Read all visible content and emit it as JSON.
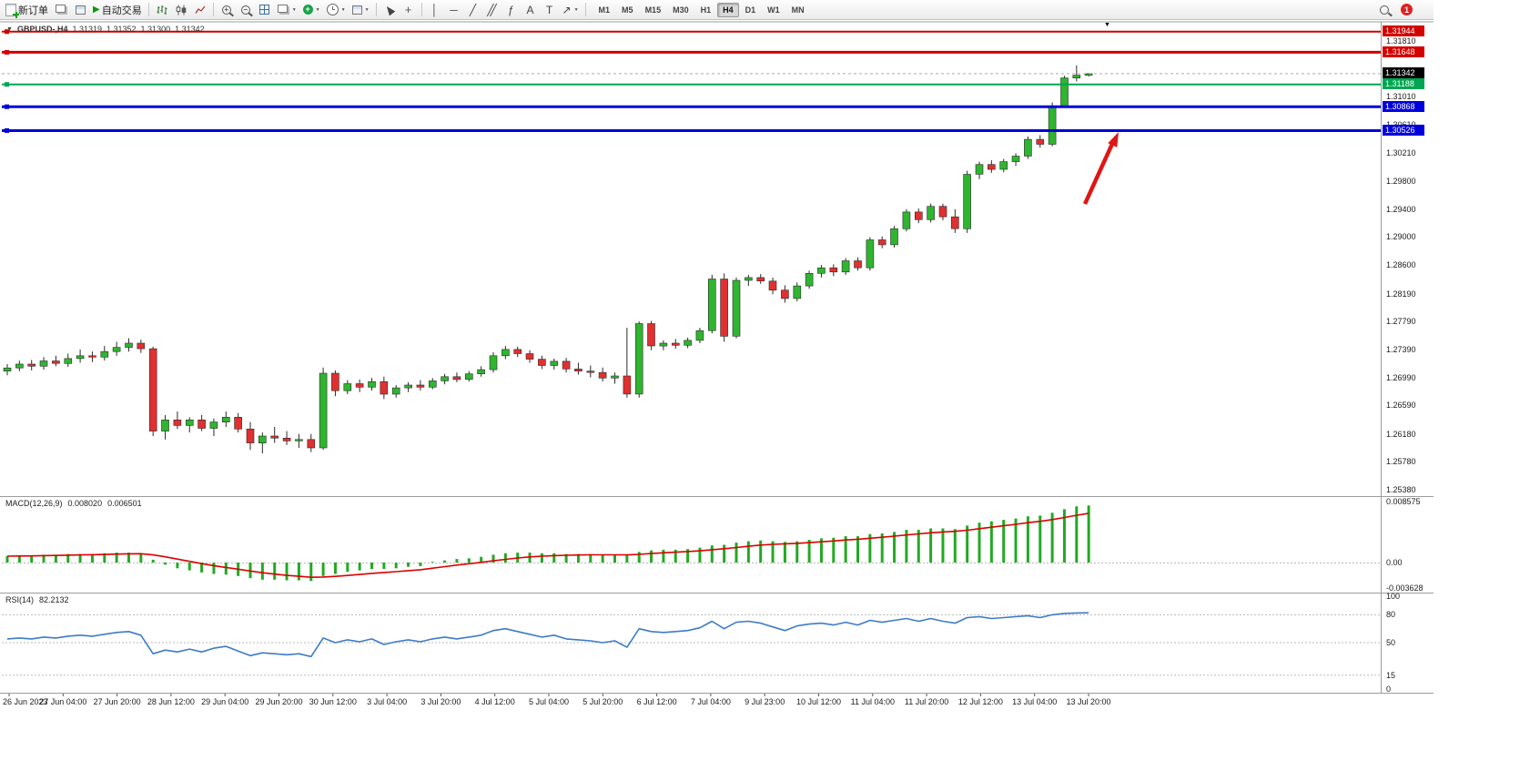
{
  "toolbar": {
    "new_order_label": "新订单",
    "auto_trading_label": "自动交易",
    "timeframes": [
      "M1",
      "M5",
      "M15",
      "M30",
      "H1",
      "H4",
      "D1",
      "W1",
      "MN"
    ],
    "active_timeframe": "H4",
    "notification_badge": "1",
    "glyphs": {
      "play": "▶",
      "vertical_line": "│",
      "horizontal_line": "─",
      "trendline": "╱",
      "channel": "╱╱",
      "fibonacci": "ƒ",
      "text_tool": "A",
      "label_tool": "T",
      "crosshair": "+",
      "arrow_tool": "↗",
      "zoom_in": "+",
      "zoom_out": "−",
      "one_click_toggle": "▼",
      "shift_marker": "▼"
    }
  },
  "chart_data": {
    "type": "candlestick",
    "symbol": "GBPUSD-",
    "timeframe": "H4",
    "header": {
      "symbol_period": "GBPUSD-,H4",
      "open": "1.31319",
      "high": "1.31352",
      "low": "1.31300",
      "close": "1.31342"
    },
    "colors": {
      "up": "#2FB52F",
      "down": "#E03030",
      "wick": "#2b2b2b",
      "macd_histogram": "#22AA22",
      "macd_signal": "#DD0000",
      "rsi_line": "#3E7BC8",
      "arrow": "#E01515"
    },
    "price_axis_labels": [
      "1.31810",
      "1.31010",
      "1.30610",
      "1.30210",
      "1.29800",
      "1.29400",
      "1.29000",
      "1.28600",
      "1.28190",
      "1.27790",
      "1.27390",
      "1.26990",
      "1.26590",
      "1.26180",
      "1.25780",
      "1.25380"
    ],
    "levels": [
      {
        "label": "1.31944",
        "color": "#D40000",
        "width": 2,
        "style": "solid"
      },
      {
        "label": "1.31648",
        "color": "#D40000",
        "width": 3,
        "style": "solid"
      },
      {
        "label": "1.31342",
        "color": "#000000",
        "width": 1,
        "style": "current"
      },
      {
        "label": "1.31188",
        "color": "#00A651",
        "width": 2,
        "style": "solid"
      },
      {
        "label": "1.30868",
        "color": "#0000DD",
        "width": 3,
        "style": "solid"
      },
      {
        "label": "1.30526",
        "color": "#0000DD",
        "width": 3,
        "style": "solid"
      }
    ],
    "candles": [
      [
        1.2708,
        1.2718,
        1.2702,
        1.27125
      ],
      [
        1.27125,
        1.2723,
        1.2708,
        1.2718
      ],
      [
        1.2718,
        1.2724,
        1.2709,
        1.2715
      ],
      [
        1.2715,
        1.2728,
        1.271,
        1.27225
      ],
      [
        1.27225,
        1.273,
        1.2715,
        1.2719
      ],
      [
        1.2719,
        1.2733,
        1.2714,
        1.2726
      ],
      [
        1.2726,
        1.2739,
        1.272,
        1.273
      ],
      [
        1.273,
        1.2736,
        1.2721,
        1.2728
      ],
      [
        1.2728,
        1.2744,
        1.2723,
        1.2736
      ],
      [
        1.2736,
        1.275,
        1.273,
        1.2742
      ],
      [
        1.2742,
        1.2755,
        1.2736,
        1.2748
      ],
      [
        1.2748,
        1.2753,
        1.2734,
        1.274
      ],
      [
        1.274,
        1.2743,
        1.2615,
        1.2622
      ],
      [
        1.2622,
        1.2645,
        1.261,
        1.2638
      ],
      [
        1.2638,
        1.265,
        1.2625,
        1.263
      ],
      [
        1.263,
        1.2642,
        1.262,
        1.2638
      ],
      [
        1.2638,
        1.2645,
        1.2622,
        1.2626
      ],
      [
        1.2626,
        1.264,
        1.2615,
        1.2635
      ],
      [
        1.2635,
        1.265,
        1.2628,
        1.2642
      ],
      [
        1.2642,
        1.2648,
        1.262,
        1.2625
      ],
      [
        1.2625,
        1.2635,
        1.2595,
        1.2605
      ],
      [
        1.2605,
        1.262,
        1.259,
        1.2615
      ],
      [
        1.2615,
        1.2628,
        1.2605,
        1.2612
      ],
      [
        1.2612,
        1.2622,
        1.2602,
        1.2608
      ],
      [
        1.2608,
        1.2618,
        1.2598,
        1.261
      ],
      [
        1.261,
        1.2618,
        1.2592,
        1.2598
      ],
      [
        1.2598,
        1.2713,
        1.2595,
        1.2705
      ],
      [
        1.2705,
        1.2709,
        1.2672,
        1.268
      ],
      [
        1.268,
        1.2695,
        1.2675,
        1.269
      ],
      [
        1.269,
        1.2696,
        1.2678,
        1.2685
      ],
      [
        1.2685,
        1.2698,
        1.268,
        1.2693
      ],
      [
        1.2693,
        1.27,
        1.2668,
        1.2675
      ],
      [
        1.2675,
        1.2688,
        1.267,
        1.2684
      ],
      [
        1.2684,
        1.2692,
        1.2678,
        1.2688
      ],
      [
        1.2688,
        1.2695,
        1.268,
        1.2685
      ],
      [
        1.2685,
        1.2698,
        1.2682,
        1.2694
      ],
      [
        1.2694,
        1.2704,
        1.2689,
        1.27
      ],
      [
        1.27,
        1.2706,
        1.2692,
        1.2696
      ],
      [
        1.2696,
        1.2708,
        1.2693,
        1.2704
      ],
      [
        1.2704,
        1.2715,
        1.27,
        1.271
      ],
      [
        1.271,
        1.2735,
        1.2706,
        1.273
      ],
      [
        1.273,
        1.2744,
        1.2725,
        1.2739
      ],
      [
        1.2739,
        1.2743,
        1.2728,
        1.2733
      ],
      [
        1.2733,
        1.2738,
        1.272,
        1.2725
      ],
      [
        1.2725,
        1.273,
        1.2711,
        1.2716
      ],
      [
        1.2716,
        1.2726,
        1.271,
        1.2722
      ],
      [
        1.2722,
        1.2727,
        1.2706,
        1.2711
      ],
      [
        1.2711,
        1.272,
        1.2703,
        1.2708
      ],
      [
        1.2708,
        1.2716,
        1.2699,
        1.2706
      ],
      [
        1.2706,
        1.2713,
        1.2693,
        1.2698
      ],
      [
        1.2698,
        1.2706,
        1.269,
        1.2701
      ],
      [
        1.2701,
        1.277,
        1.267,
        1.2675
      ],
      [
        1.2675,
        1.2779,
        1.267,
        1.2776
      ],
      [
        1.2776,
        1.278,
        1.2738,
        1.2744
      ],
      [
        1.2744,
        1.2752,
        1.2738,
        1.2748
      ],
      [
        1.2748,
        1.2754,
        1.274,
        1.2745
      ],
      [
        1.2745,
        1.2756,
        1.2741,
        1.2752
      ],
      [
        1.2752,
        1.277,
        1.2748,
        1.2766
      ],
      [
        1.2766,
        1.2846,
        1.2762,
        1.284
      ],
      [
        1.284,
        1.2848,
        1.275,
        1.2758
      ],
      [
        1.2758,
        1.2842,
        1.2755,
        1.2838
      ],
      [
        1.2838,
        1.2846,
        1.283,
        1.2842
      ],
      [
        1.2842,
        1.2847,
        1.2833,
        1.2837
      ],
      [
        1.2837,
        1.2842,
        1.2818,
        1.2824
      ],
      [
        1.2824,
        1.2831,
        1.2806,
        1.2812
      ],
      [
        1.2812,
        1.2835,
        1.2808,
        1.283
      ],
      [
        1.283,
        1.2852,
        1.2826,
        1.2848
      ],
      [
        1.2848,
        1.286,
        1.2842,
        1.2856
      ],
      [
        1.2856,
        1.2861,
        1.2844,
        1.285
      ],
      [
        1.285,
        1.287,
        1.2846,
        1.2866
      ],
      [
        1.2866,
        1.2871,
        1.2852,
        1.2856
      ],
      [
        1.2856,
        1.29,
        1.2852,
        1.2896
      ],
      [
        1.2896,
        1.2901,
        1.2884,
        1.2889
      ],
      [
        1.2889,
        1.2916,
        1.2885,
        1.2912
      ],
      [
        1.2912,
        1.294,
        1.2908,
        1.2936
      ],
      [
        1.2936,
        1.2941,
        1.292,
        1.2925
      ],
      [
        1.2925,
        1.2948,
        1.2921,
        1.2944
      ],
      [
        1.2944,
        1.2948,
        1.2924,
        1.2929
      ],
      [
        1.2929,
        1.294,
        1.2906,
        1.2912
      ],
      [
        1.2912,
        1.2995,
        1.2906,
        1.299
      ],
      [
        1.299,
        1.3008,
        1.2983,
        1.3004
      ],
      [
        1.3004,
        1.301,
        1.2992,
        1.2997
      ],
      [
        1.2997,
        1.3012,
        1.2993,
        1.3008
      ],
      [
        1.3008,
        1.302,
        1.3002,
        1.3016
      ],
      [
        1.3016,
        1.3044,
        1.3012,
        1.304
      ],
      [
        1.304,
        1.3046,
        1.3028,
        1.3033
      ],
      [
        1.3033,
        1.3093,
        1.303,
        1.3088
      ],
      [
        1.3088,
        1.3131,
        1.3085,
        1.3128
      ],
      [
        1.3128,
        1.3146,
        1.3123,
        1.3132
      ],
      [
        1.31319,
        1.31352,
        1.313,
        1.31342
      ]
    ],
    "macd": {
      "label": "MACD(12,26,9)",
      "main_value": "0.008020",
      "signal_value": "0.006501",
      "scale_labels": [
        "0.008575",
        "0.00",
        "-0.003628"
      ],
      "histogram": [
        0.0009,
        0.001,
        0.001,
        0.0011,
        0.0011,
        0.0012,
        0.0012,
        0.0012,
        0.0013,
        0.0014,
        0.0014,
        0.0013,
        0.0004,
        -0.0003,
        -0.0008,
        -0.0011,
        -0.0014,
        -0.0016,
        -0.0017,
        -0.0019,
        -0.0022,
        -0.0024,
        -0.0024,
        -0.0025,
        -0.0025,
        -0.0026,
        -0.0019,
        -0.0016,
        -0.0013,
        -0.0011,
        -0.0009,
        -0.0009,
        -0.0008,
        -0.0006,
        -0.0005,
        0.0001,
        0.0003,
        0.0005,
        0.0006,
        0.0008,
        0.0011,
        0.0013,
        0.0014,
        0.0014,
        0.0013,
        0.0013,
        0.0012,
        0.0012,
        0.0012,
        0.0011,
        0.0011,
        0.001,
        0.0015,
        0.0017,
        0.0018,
        0.0018,
        0.0019,
        0.0021,
        0.0024,
        0.0025,
        0.0028,
        0.003,
        0.0031,
        0.003,
        0.0029,
        0.003,
        0.0032,
        0.0034,
        0.0035,
        0.0037,
        0.0037,
        0.004,
        0.0041,
        0.0043,
        0.0046,
        0.0046,
        0.0048,
        0.0048,
        0.0047,
        0.0052,
        0.0056,
        0.0058,
        0.006,
        0.0062,
        0.0065,
        0.0066,
        0.007,
        0.0075,
        0.0079,
        0.00802
      ]
    },
    "rsi": {
      "label": "RSI(14)",
      "value": "82.2132",
      "scale_labels": [
        "100",
        "80",
        "50",
        "15",
        "0"
      ],
      "dashed_levels": [
        80,
        50,
        15
      ],
      "values": [
        54,
        55,
        54,
        56,
        55,
        57,
        58,
        57,
        59,
        61,
        62,
        58,
        38,
        42,
        40,
        43,
        40,
        44,
        46,
        41,
        36,
        39,
        38,
        37,
        38,
        35,
        55,
        50,
        53,
        51,
        54,
        48,
        51,
        53,
        51,
        54,
        56,
        54,
        56,
        58,
        63,
        65,
        62,
        59,
        56,
        58,
        54,
        53,
        52,
        50,
        52,
        45,
        65,
        62,
        61,
        62,
        63,
        66,
        73,
        65,
        72,
        73,
        71,
        67,
        63,
        68,
        70,
        71,
        69,
        72,
        69,
        74,
        72,
        74,
        76,
        73,
        76,
        73,
        71,
        77,
        78,
        76,
        77,
        78,
        79,
        77,
        80,
        81.5,
        82,
        82.2
      ]
    },
    "time_labels": [
      "26 Jun 2023",
      "27 Jun 04:00",
      "27 Jun 20:00",
      "28 Jun 12:00",
      "29 Jun 04:00",
      "29 Jun 20:00",
      "30 Jun 12:00",
      "3 Jul 04:00",
      "3 Jul 20:00",
      "4 Jul 12:00",
      "5 Jul 04:00",
      "5 Jul 20:00",
      "6 Jul 12:00",
      "7 Jul 04:00",
      "9 Jul 23:00",
      "10 Jul 12:00",
      "11 Jul 04:00",
      "11 Jul 20:00",
      "12 Jul 12:00",
      "13 Jul 04:00",
      "13 Jul 20:00"
    ]
  }
}
